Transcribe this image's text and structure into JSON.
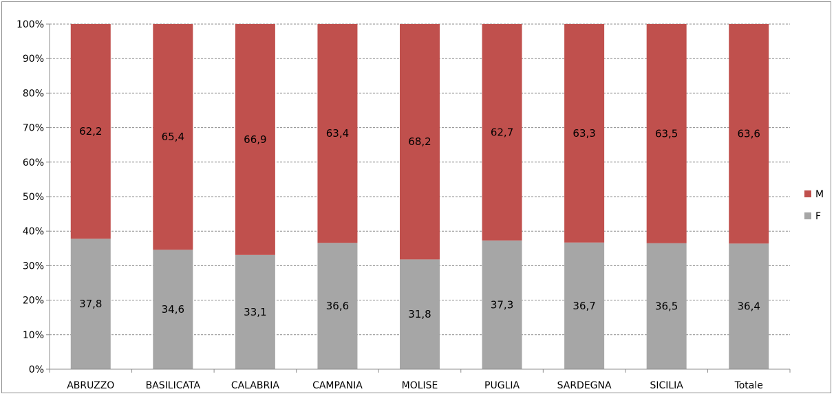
{
  "chart_data": {
    "type": "bar",
    "stacked": true,
    "normalized": true,
    "categories": [
      "ABRUZZO",
      "BASILICATA",
      "CALABRIA",
      "CAMPANIA",
      "MOLISE",
      "PUGLIA",
      "SARDEGNA",
      "SICILIA",
      "Totale"
    ],
    "series": [
      {
        "name": "F",
        "color": "#a6a6a6",
        "values": [
          37.8,
          34.6,
          33.1,
          36.6,
          31.8,
          37.3,
          36.7,
          36.5,
          36.4
        ],
        "labels": [
          "37,8",
          "34,6",
          "33,1",
          "36,6",
          "31,8",
          "37,3",
          "36,7",
          "36,5",
          "36,4"
        ]
      },
      {
        "name": "M",
        "color": "#c0504d",
        "values": [
          62.2,
          65.4,
          66.9,
          63.4,
          68.2,
          62.7,
          63.3,
          63.5,
          63.6
        ],
        "labels": [
          "62,2",
          "65,4",
          "66,9",
          "63,4",
          "68,2",
          "62,7",
          "63,3",
          "63,5",
          "63,6"
        ]
      }
    ],
    "ylim": [
      0,
      100
    ],
    "yticks": [
      "0%",
      "10%",
      "20%",
      "30%",
      "40%",
      "50%",
      "60%",
      "70%",
      "80%",
      "90%",
      "100%"
    ],
    "grid": true,
    "legend_position": "right",
    "legend_order": [
      "M",
      "F"
    ]
  }
}
